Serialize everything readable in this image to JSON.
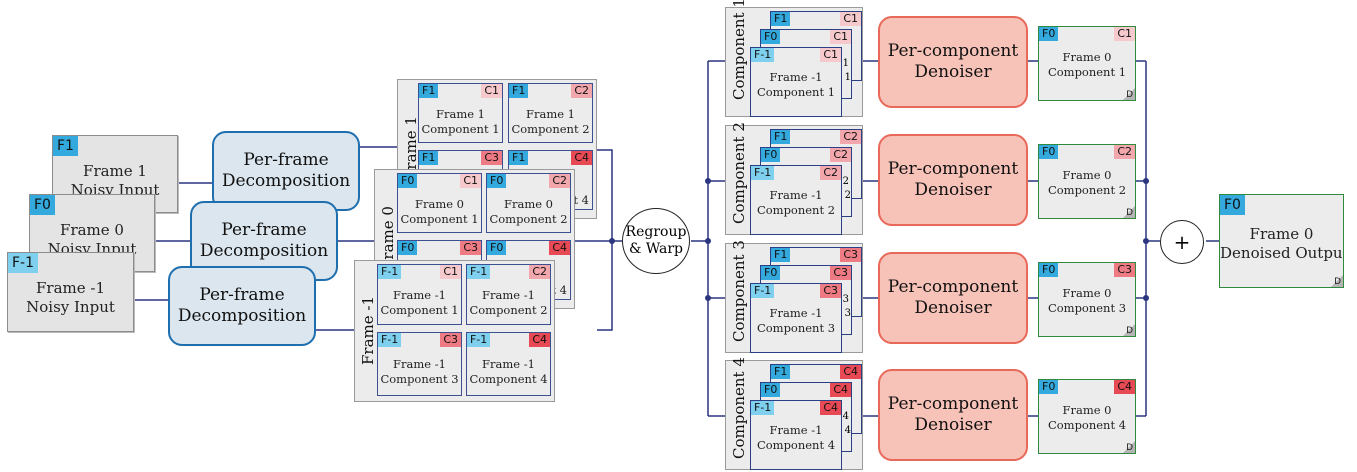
{
  "inputs": [
    {
      "tag": "F1",
      "line1": "Frame 1",
      "line2": "Noisy Input"
    },
    {
      "tag": "F0",
      "line1": "Frame 0",
      "line2": "Noisy Input"
    },
    {
      "tag": "F-1",
      "line1": "Frame -1",
      "line2": "Noisy Input"
    }
  ],
  "decomposition": {
    "line1": "Per-frame",
    "line2": "Decomposition"
  },
  "frame_panels": [
    {
      "label": "Frame 1",
      "tag": "F1",
      "cells": [
        {
          "c": "C1",
          "line1": "Frame 1",
          "line2": "Component 1"
        },
        {
          "c": "C2",
          "line1": "Frame 1",
          "line2": "Component 2"
        },
        {
          "c": "C3",
          "line1": "",
          "line2": ""
        },
        {
          "c": "C4",
          "line1": "",
          "line2": "t 4"
        }
      ]
    },
    {
      "label": "Frame 0",
      "tag": "F0",
      "cells": [
        {
          "c": "C1",
          "line1": "Frame 0",
          "line2": "Component 1"
        },
        {
          "c": "C2",
          "line1": "Frame 0",
          "line2": "Component 2"
        },
        {
          "c": "C3",
          "line1": "",
          "line2": ""
        },
        {
          "c": "C4",
          "line1": "",
          "line2": "t 4"
        }
      ]
    },
    {
      "label": "Frame -1",
      "tag": "F-1",
      "cells": [
        {
          "c": "C1",
          "line1": "Frame -1",
          "line2": "Component 1"
        },
        {
          "c": "C2",
          "line1": "Frame -1",
          "line2": "Component 2"
        },
        {
          "c": "C3",
          "line1": "Frame -1",
          "line2": "Component 3"
        },
        {
          "c": "C4",
          "line1": "Frame -1",
          "line2": "Component 4"
        }
      ]
    }
  ],
  "regroup": {
    "line1": "Regroup",
    "line2": "& Warp"
  },
  "components": [
    {
      "label": "Component 1",
      "c": "C1",
      "stack_num": "1",
      "line1": "Frame -1",
      "line2": "Component 1",
      "out_line1": "Frame 0",
      "out_line2": "Component 1"
    },
    {
      "label": "Component 2",
      "c": "C2",
      "stack_num": "2",
      "line1": "Frame -1",
      "line2": "Component 2",
      "out_line1": "Frame 0",
      "out_line2": "Component 2"
    },
    {
      "label": "Component 3",
      "c": "C3",
      "stack_num": "3",
      "line1": "Frame -1",
      "line2": "Component 3",
      "out_line1": "Frame 0",
      "out_line2": "Component 3"
    },
    {
      "label": "Component 4",
      "c": "C4",
      "stack_num": "4",
      "line1": "Frame -1",
      "line2": "Component 4",
      "out_line1": "Frame 0",
      "out_line2": "Component 4"
    }
  ],
  "stack_tags": {
    "top": "F1",
    "mid": "F0",
    "front": "F-1",
    "out": "F0"
  },
  "denoiser": {
    "line1": "Per-component",
    "line2": "Denoiser"
  },
  "d_mark": "D",
  "plus": "+",
  "output": {
    "tag": "F0",
    "line1": "Frame 0",
    "line2": "Denoised Output"
  },
  "colors": {
    "decomp_border": "#1f6fae",
    "denoiser_border": "#e8695a",
    "denoiser_fill": "#f7c2b8",
    "output_border": "#2f8a3e",
    "frame_tag": "#33a9dd",
    "line": "#1f2f7f"
  }
}
